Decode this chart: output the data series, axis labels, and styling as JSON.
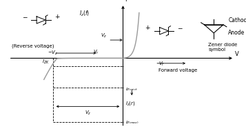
{
  "bg_color": "#ffffff",
  "axis_color": "#000000",
  "curve_color": "#999999",
  "fig_width": 3.57,
  "fig_height": 1.9,
  "dpi": 100,
  "xlim": [
    -4.2,
    4.2
  ],
  "ylim": [
    -4.0,
    3.2
  ],
  "ax_x": 0.0,
  "vz_x": -2.4,
  "izk_y": -0.45,
  "izmin_y": -1.6,
  "izmax_y": -3.5,
  "vf_x": 0.5
}
